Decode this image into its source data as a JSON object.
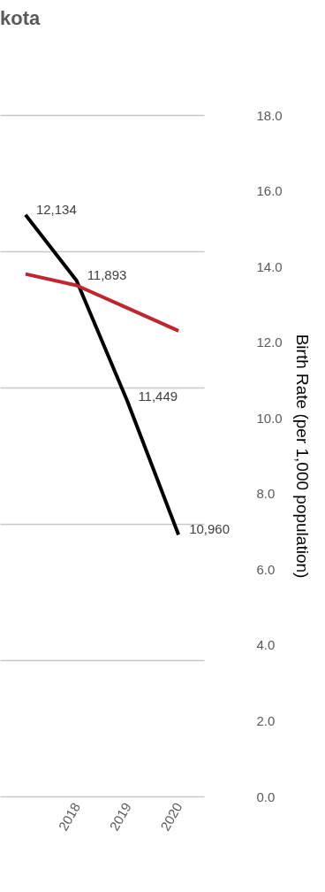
{
  "chart_data": {
    "type": "line",
    "title": "kota",
    "y2label": "Birth Rate (per 1,000 population)",
    "categories": [
      null,
      "2018",
      "2019",
      "2020"
    ],
    "series": [
      {
        "color": "#000000",
        "values": [
          12134,
          11893,
          11449,
          10960
        ],
        "value_labels": [
          "12,134",
          "11,893",
          "11,449",
          "10,960"
        ]
      },
      {
        "color": "#c0262d",
        "axis": "y2",
        "values": [
          13.8,
          13.5,
          12.9,
          12.3
        ]
      }
    ],
    "ylim": [
      10000,
      12500
    ],
    "yticks": [
      {
        "value": 10000,
        "label": null
      },
      {
        "value": 10500,
        "label": null
      },
      {
        "value": 11000,
        "label": null
      },
      {
        "value": 11500,
        "label": null
      },
      {
        "value": 12000,
        "label": null
      },
      {
        "value": 12500,
        "label": null
      }
    ],
    "y2lim": [
      0,
      18
    ],
    "y2ticks": [
      {
        "value": 0,
        "label": "0.0"
      },
      {
        "value": 2,
        "label": "2.0"
      },
      {
        "value": 4,
        "label": "4.0"
      },
      {
        "value": 6,
        "label": "6.0"
      },
      {
        "value": 8,
        "label": "8.0"
      },
      {
        "value": 10,
        "label": "10.0"
      },
      {
        "value": 12,
        "label": "12.0"
      },
      {
        "value": 14,
        "label": "14.0"
      },
      {
        "value": 16,
        "label": "16.0"
      },
      {
        "value": 18,
        "label": "18.0"
      }
    ],
    "grid": "y"
  }
}
